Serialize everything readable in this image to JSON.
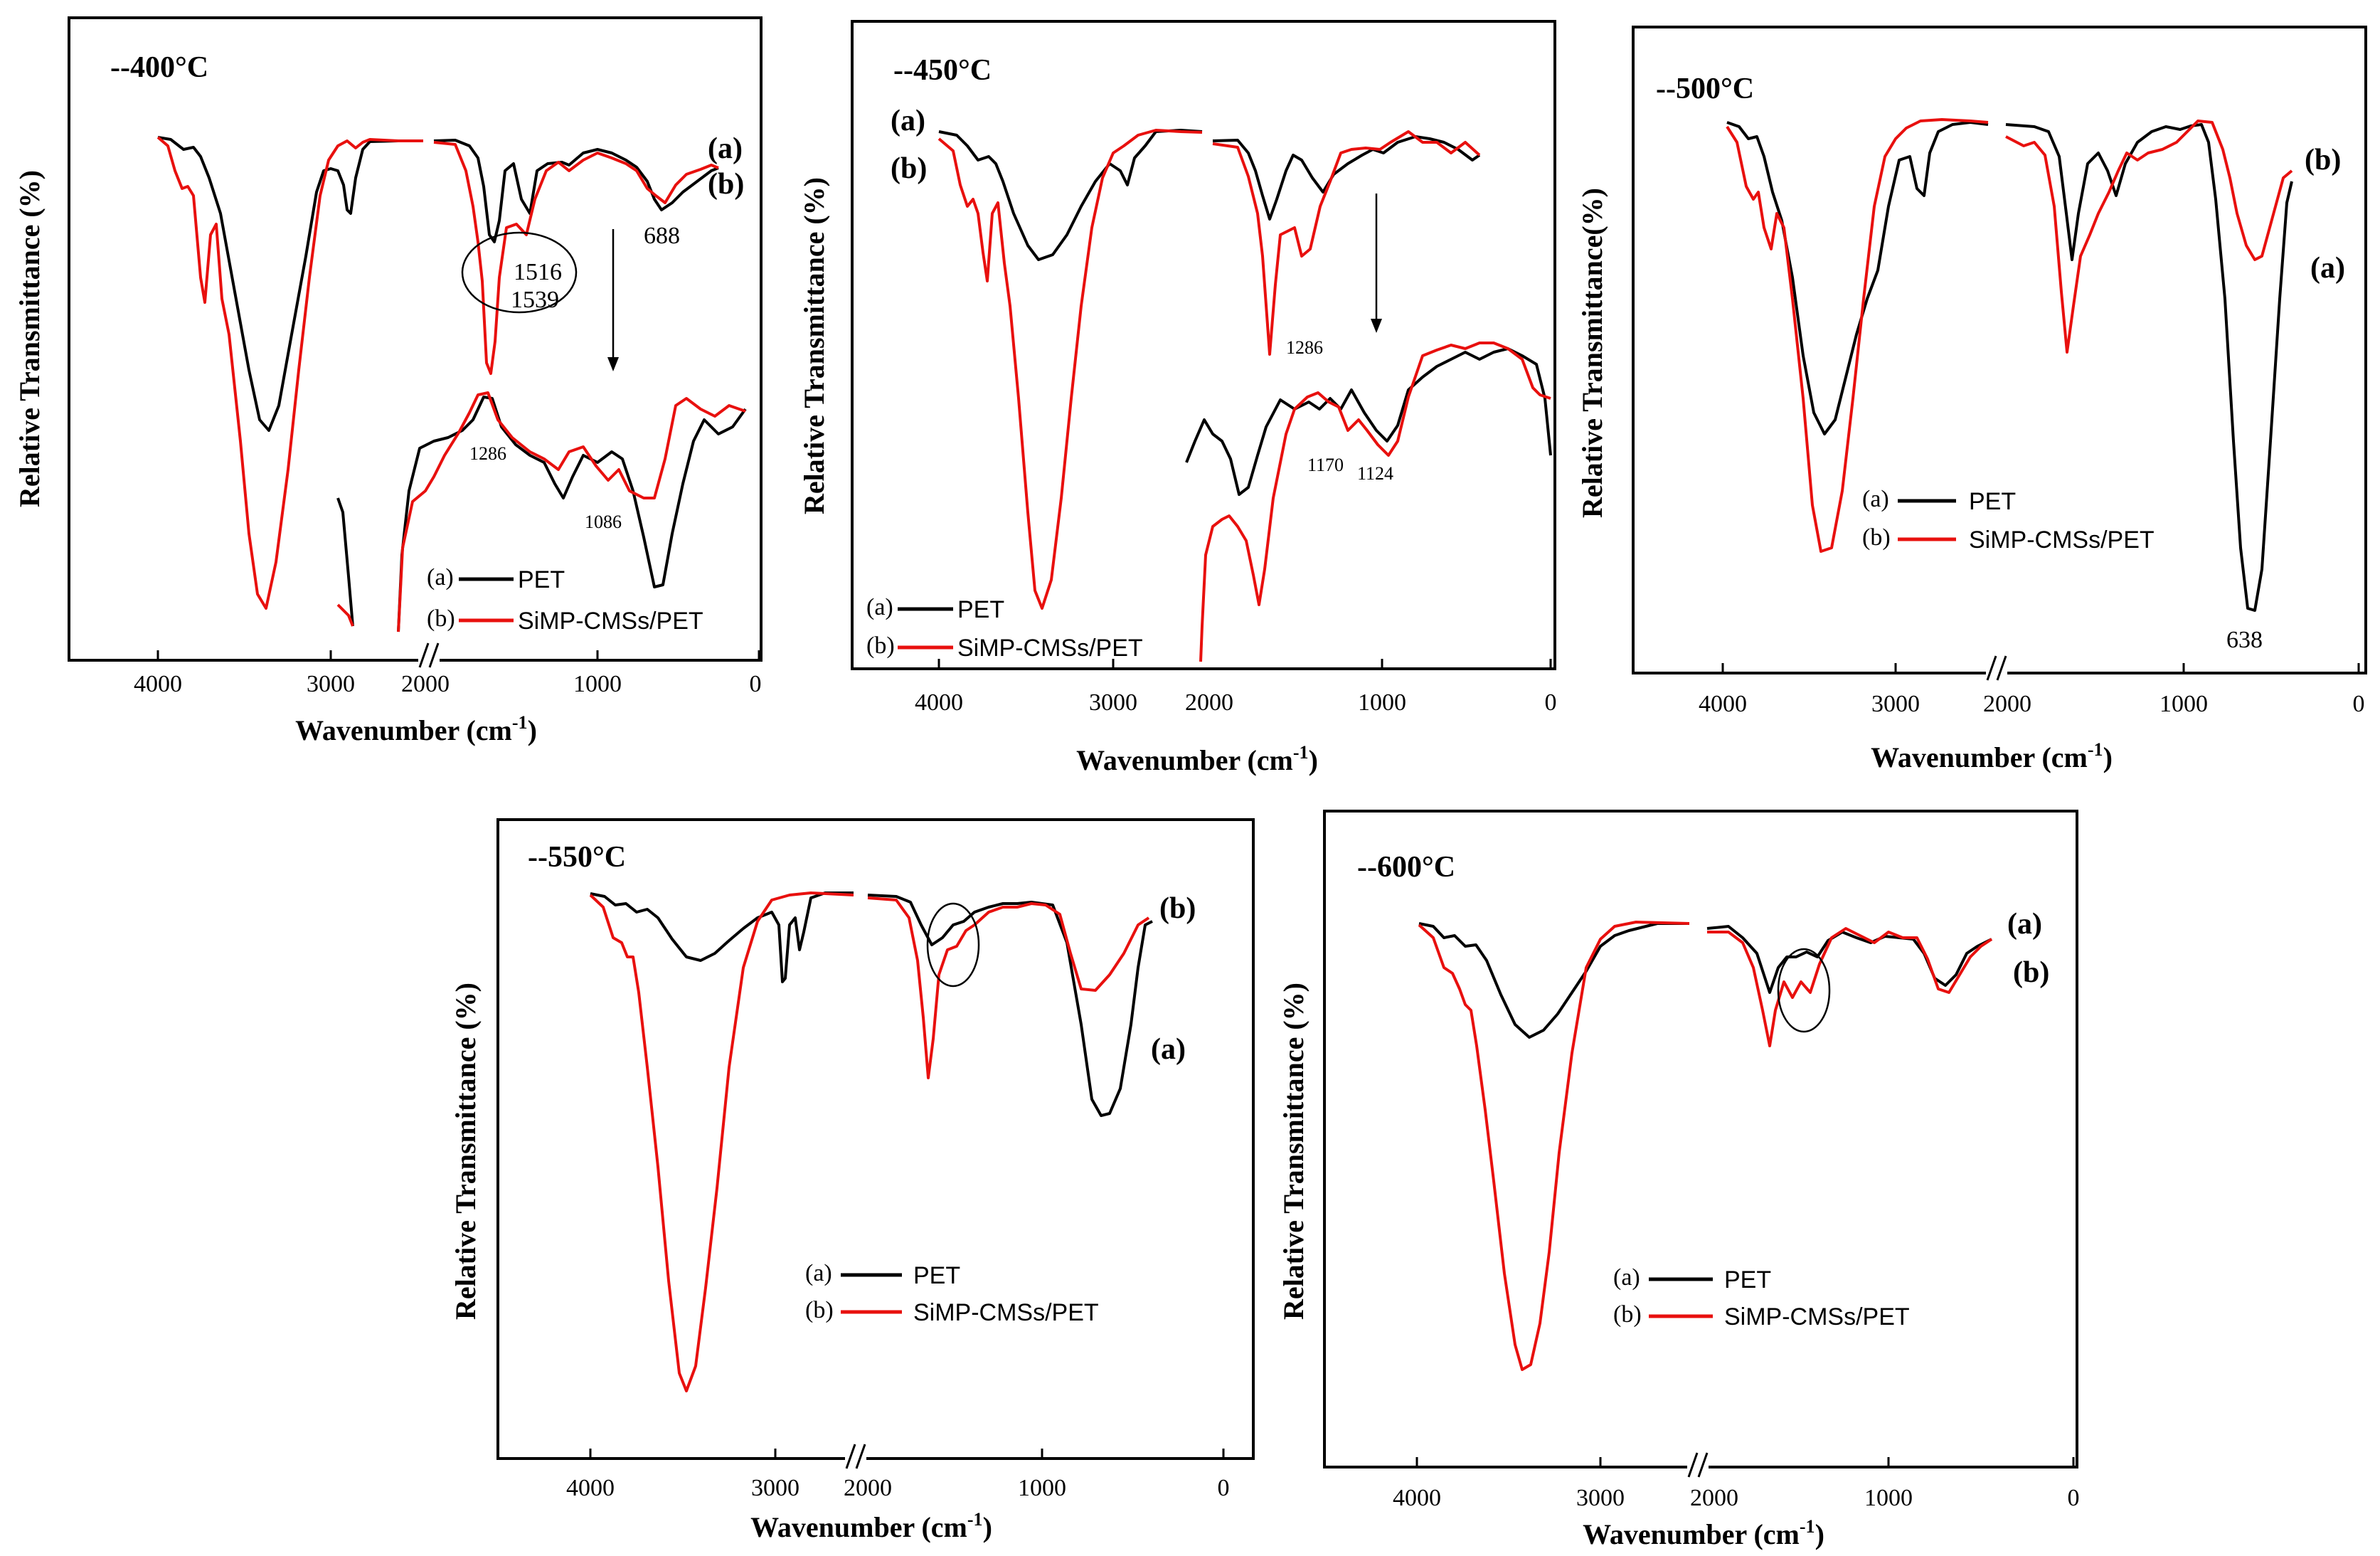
{
  "colors": {
    "pet": "#000000",
    "cms": "#e8100e"
  },
  "chart_data": [
    {
      "type": "line",
      "title": "--400°C",
      "xlabel": "Wavenumber (cm-1)",
      "ylabel": "Relative Transmittance (%)",
      "x_ticks": [
        "4000",
        "3000",
        "2000",
        "1000",
        "0"
      ],
      "axis_break": "between 3000 and 2000 cm-1",
      "series": [
        {
          "name": "(a) PET",
          "points": [
            [
              4000,
              0.95
            ],
            [
              3800,
              0.93
            ],
            [
              3600,
              0.75
            ],
            [
              3460,
              0.35
            ],
            [
              3300,
              0.55
            ],
            [
              3100,
              0.82
            ],
            [
              2930,
              0.78
            ],
            [
              2850,
              0.88
            ],
            [
              2700,
              0.96
            ],
            [
              2000,
              0.95
            ],
            [
              1750,
              0.92
            ],
            [
              1720,
              0.68
            ],
            [
              1600,
              0.86
            ],
            [
              1400,
              0.8
            ],
            [
              1100,
              0.9
            ],
            [
              850,
              0.88
            ],
            [
              700,
              0.83
            ],
            [
              500,
              0.86
            ]
          ]
        },
        {
          "name": "(b) SiMP-CMSs/PET",
          "points": [
            [
              4000,
              0.95
            ],
            [
              3850,
              0.85
            ],
            [
              3700,
              0.7
            ],
            [
              3450,
              0.08
            ],
            [
              3300,
              0.45
            ],
            [
              3100,
              0.9
            ],
            [
              2900,
              0.95
            ],
            [
              2700,
              0.96
            ],
            [
              2000,
              0.93
            ],
            [
              1750,
              0.88
            ],
            [
              1630,
              0.42
            ],
            [
              1539,
              0.68
            ],
            [
              1516,
              0.72
            ],
            [
              1400,
              0.88
            ],
            [
              1100,
              0.93
            ],
            [
              900,
              0.95
            ],
            [
              688,
              0.8
            ],
            [
              500,
              0.85
            ]
          ]
        }
      ],
      "annotations": [
        "1516",
        "1539",
        "688",
        "1286",
        "1086"
      ],
      "series_tags": [
        "(a)",
        "(b)"
      ]
    },
    {
      "type": "line",
      "title": "--450°C",
      "xlabel": "Wavenumber (cm-1)",
      "ylabel": "Relative Transmittance (%)",
      "x_ticks": [
        "4000",
        "3000",
        "2000",
        "1000",
        "0"
      ],
      "axis_break": "between 3000 and 2000 cm-1",
      "series": [
        {
          "name": "(a) PET",
          "points": [
            [
              4000,
              0.96
            ],
            [
              3800,
              0.92
            ],
            [
              3600,
              0.82
            ],
            [
              3450,
              0.7
            ],
            [
              3200,
              0.84
            ],
            [
              3000,
              0.93
            ],
            [
              2850,
              0.95
            ],
            [
              2700,
              0.96
            ],
            [
              2000,
              0.95
            ],
            [
              1720,
              0.75
            ],
            [
              1600,
              0.86
            ],
            [
              1400,
              0.84
            ],
            [
              1100,
              0.93
            ],
            [
              900,
              0.93
            ],
            [
              700,
              0.88
            ],
            [
              500,
              0.9
            ]
          ]
        },
        {
          "name": "(b) SiMP-CMSs/PET",
          "points": [
            [
              4000,
              0.94
            ],
            [
              3850,
              0.8
            ],
            [
              3700,
              0.7
            ],
            [
              3450,
              0.08
            ],
            [
              3300,
              0.5
            ],
            [
              3100,
              0.9
            ],
            [
              2900,
              0.95
            ],
            [
              2700,
              0.96
            ],
            [
              2000,
              0.93
            ],
            [
              1720,
              0.6
            ],
            [
              1600,
              0.8
            ],
            [
              1400,
              0.86
            ],
            [
              1100,
              0.92
            ],
            [
              900,
              0.93
            ],
            [
              700,
              0.85
            ],
            [
              500,
              0.9
            ]
          ]
        }
      ],
      "annotations": [
        "1286",
        "1170",
        "1124"
      ],
      "series_tags": [
        "(a)",
        "(b)"
      ]
    },
    {
      "type": "line",
      "title": "--500°C",
      "xlabel": "Wavenumber (cm-1)",
      "ylabel": "Relative Transmittance(%)",
      "x_ticks": [
        "4000",
        "3000",
        "2000",
        "1000",
        "0"
      ],
      "axis_break": "between 3000 and 2000 cm-1",
      "series": [
        {
          "name": "(a) PET",
          "points": [
            [
              4000,
              0.96
            ],
            [
              3800,
              0.93
            ],
            [
              3600,
              0.75
            ],
            [
              3460,
              0.45
            ],
            [
              3300,
              0.62
            ],
            [
              3100,
              0.88
            ],
            [
              2900,
              0.9
            ],
            [
              2700,
              0.96
            ],
            [
              2000,
              0.95
            ],
            [
              1720,
              0.72
            ],
            [
              1600,
              0.9
            ],
            [
              1400,
              0.8
            ],
            [
              1100,
              0.95
            ],
            [
              900,
              0.96
            ],
            [
              638,
              0.05
            ],
            [
              500,
              0.85
            ]
          ]
        },
        {
          "name": "(b) SiMP-CMSs/PET",
          "points": [
            [
              4000,
              0.95
            ],
            [
              3850,
              0.85
            ],
            [
              3700,
              0.7
            ],
            [
              3460,
              0.22
            ],
            [
              3300,
              0.6
            ],
            [
              3100,
              0.93
            ],
            [
              2900,
              0.96
            ],
            [
              2700,
              0.96
            ],
            [
              2000,
              0.92
            ],
            [
              1720,
              0.55
            ],
            [
              1600,
              0.8
            ],
            [
              1400,
              0.84
            ],
            [
              1100,
              0.9
            ],
            [
              900,
              0.96
            ],
            [
              700,
              0.75
            ],
            [
              500,
              0.85
            ]
          ]
        }
      ],
      "annotations": [
        "638"
      ],
      "series_tags": [
        "(b)",
        "(a)"
      ]
    },
    {
      "type": "line",
      "title": "--550°C",
      "xlabel": "Wavenumber (cm-1)",
      "ylabel": "Relative Transmittance (%)",
      "x_ticks": [
        "4000",
        "3000",
        "2000",
        "1000",
        "0"
      ],
      "axis_break": "between 3000 and 2000 cm-1",
      "series": [
        {
          "name": "(a) PET",
          "points": [
            [
              4000,
              0.97
            ],
            [
              3800,
              0.95
            ],
            [
              3600,
              0.9
            ],
            [
              3430,
              0.85
            ],
            [
              3200,
              0.92
            ],
            [
              3000,
              0.97
            ],
            [
              2930,
              0.85
            ],
            [
              2850,
              0.92
            ],
            [
              2700,
              0.98
            ],
            [
              2000,
              0.97
            ],
            [
              1720,
              0.9
            ],
            [
              1500,
              0.94
            ],
            [
              1100,
              0.97
            ],
            [
              900,
              0.96
            ],
            [
              680,
              0.58
            ],
            [
              500,
              0.9
            ]
          ]
        },
        {
          "name": "(b) SiMP-CMSs/PET",
          "points": [
            [
              4000,
              0.97
            ],
            [
              3850,
              0.92
            ],
            [
              3700,
              0.8
            ],
            [
              3450,
              0.05
            ],
            [
              3300,
              0.45
            ],
            [
              3100,
              0.93
            ],
            [
              2900,
              0.97
            ],
            [
              2700,
              0.98
            ],
            [
              2000,
              0.97
            ],
            [
              1630,
              0.7
            ],
            [
              1500,
              0.88
            ],
            [
              1100,
              0.96
            ],
            [
              900,
              0.97
            ],
            [
              700,
              0.85
            ],
            [
              500,
              0.95
            ]
          ]
        }
      ],
      "annotations": [],
      "series_tags": [
        "(b)",
        "(a)"
      ]
    },
    {
      "type": "line",
      "title": "--600°C",
      "xlabel": "Wavenumber (cm-1)",
      "ylabel": "Relative Transmittance (%)",
      "x_ticks": [
        "4000",
        "3000",
        "2000",
        "1000",
        "0"
      ],
      "axis_break": "between 3000 and 2000 cm-1",
      "series": [
        {
          "name": "(a) PET",
          "points": [
            [
              4000,
              0.95
            ],
            [
              3800,
              0.92
            ],
            [
              3600,
              0.82
            ],
            [
              3450,
              0.76
            ],
            [
              3200,
              0.88
            ],
            [
              3000,
              0.94
            ],
            [
              2700,
              0.95
            ],
            [
              2000,
              0.95
            ],
            [
              1620,
              0.86
            ],
            [
              1500,
              0.9
            ],
            [
              1100,
              0.94
            ],
            [
              900,
              0.93
            ],
            [
              700,
              0.88
            ],
            [
              500,
              0.93
            ]
          ]
        },
        {
          "name": "(b) SiMP-CMSs/PET",
          "points": [
            [
              4000,
              0.95
            ],
            [
              3850,
              0.88
            ],
            [
              3700,
              0.8
            ],
            [
              3450,
              0.05
            ],
            [
              3300,
              0.5
            ],
            [
              3100,
              0.93
            ],
            [
              2900,
              0.95
            ],
            [
              2700,
              0.95
            ],
            [
              2000,
              0.95
            ],
            [
              1620,
              0.7
            ],
            [
              1500,
              0.86
            ],
            [
              1100,
              0.94
            ],
            [
              900,
              0.93
            ],
            [
              700,
              0.86
            ],
            [
              500,
              0.93
            ]
          ]
        }
      ],
      "annotations": [],
      "series_tags": [
        "(a)",
        "(b)"
      ]
    }
  ],
  "panels": [
    {
      "temp": "--400°C",
      "xlabel": "Wavenumber (cm",
      "xlabel_sup": "-1",
      "xlabel_end": ")",
      "ylabel": "Relative Transmittance (%)",
      "tags": [
        "(a)",
        "(b)"
      ],
      "legend": [
        {
          "key": "(a)",
          "label": "PET"
        },
        {
          "key": "(b)",
          "label": "SiMP-CMSs/PET"
        }
      ],
      "ticks": [
        "4000",
        "3000",
        "2000",
        "1000",
        "0"
      ],
      "anns": [
        "1516",
        "1539",
        "688",
        "1286",
        "1086"
      ]
    },
    {
      "temp": "--450°C",
      "xlabel": "Wavenumber (cm",
      "xlabel_sup": "-1",
      "xlabel_end": ")",
      "ylabel": "Relative Transmittance (%)",
      "tags": [
        "(a)",
        "(b)"
      ],
      "legend": [
        {
          "key": "(a)",
          "label": "PET"
        },
        {
          "key": "(b)",
          "label": "SiMP-CMSs/PET"
        }
      ],
      "ticks": [
        "4000",
        "3000",
        "2000",
        "1000",
        "0"
      ],
      "anns": [
        "1286",
        "1170",
        "1124"
      ]
    },
    {
      "temp": "--500°C",
      "xlabel": "Wavenumber (cm",
      "xlabel_sup": "-1",
      "xlabel_end": ")",
      "ylabel": "Relative Transmittance(%)",
      "tags": [
        "(b)",
        "(a)"
      ],
      "legend": [
        {
          "key": "(a)",
          "label": "PET"
        },
        {
          "key": "(b)",
          "label": "SiMP-CMSs/PET"
        }
      ],
      "ticks": [
        "4000",
        "3000",
        "2000",
        "1000",
        "0"
      ],
      "anns": [
        "638"
      ]
    },
    {
      "temp": "--550°C",
      "xlabel": "Wavenumber (cm",
      "xlabel_sup": "-1",
      "xlabel_end": ")",
      "ylabel": "Relative Transmittance (%)",
      "tags": [
        "(b)",
        "(a)"
      ],
      "legend": [
        {
          "key": "(a)",
          "label": "PET"
        },
        {
          "key": "(b)",
          "label": "SiMP-CMSs/PET"
        }
      ],
      "ticks": [
        "4000",
        "3000",
        "2000",
        "1000",
        "0"
      ],
      "anns": []
    },
    {
      "temp": "--600°C",
      "xlabel": "Wavenumber (cm",
      "xlabel_sup": "-1",
      "xlabel_end": ")",
      "ylabel": "Relative Transmittance (%)",
      "tags": [
        "(a)",
        "(b)"
      ],
      "legend": [
        {
          "key": "(a)",
          "label": "PET"
        },
        {
          "key": "(b)",
          "label": "SiMP-CMSs/PET"
        }
      ],
      "ticks": [
        "4000",
        "3000",
        "2000",
        "1000",
        "0"
      ],
      "anns": []
    }
  ]
}
